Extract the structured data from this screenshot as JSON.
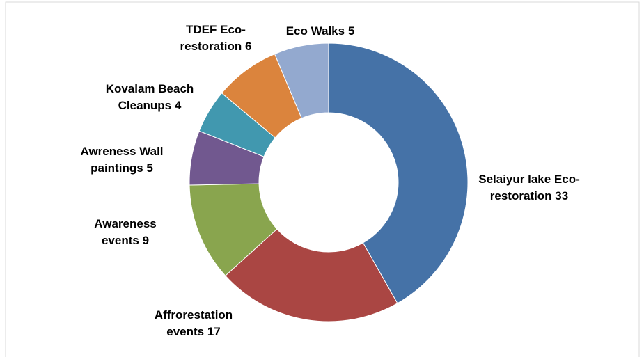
{
  "chart_data": {
    "type": "doughnut",
    "categories": [
      "Selaiyur lake Eco-restoration",
      "Affrorestation events",
      "Awareness events",
      "Awreness Wall paintings",
      "Kovalam Beach Cleanups",
      "TDEF Eco-restoration",
      "Eco Walks"
    ],
    "values": [
      33,
      17,
      9,
      5,
      4,
      6,
      5
    ],
    "colors": [
      "#4572a7",
      "#aa4643",
      "#89a54e",
      "#71588f",
      "#4198af",
      "#db843d",
      "#93a9cf"
    ]
  }
}
